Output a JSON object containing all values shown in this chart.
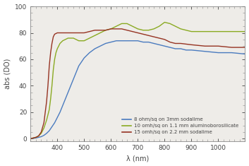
{
  "title": "",
  "xlabel": "λ (nm)",
  "ylabel": "abs (DO)",
  "xlim": [
    300,
    1100
  ],
  "ylim": [
    -2,
    100
  ],
  "yticks": [
    0,
    20,
    40,
    60,
    80,
    100
  ],
  "xticks": [
    400,
    500,
    600,
    700,
    800,
    900,
    1000
  ],
  "background_color": "#ffffff",
  "plot_bg_color": "#eeece8",
  "legend": [
    "8 ohm/sq on 3mm sodalime",
    "10 omh/sq on 1.1 mm aluminoborosilicate",
    "15 omh/sq on 2.2 mm sodalime"
  ],
  "line_colors": [
    "#4a7bbf",
    "#8aaa22",
    "#963322"
  ],
  "blue_x": [
    300,
    310,
    320,
    330,
    340,
    350,
    360,
    370,
    380,
    390,
    400,
    410,
    420,
    430,
    440,
    450,
    460,
    470,
    480,
    490,
    500,
    520,
    540,
    560,
    580,
    600,
    620,
    640,
    660,
    680,
    700,
    720,
    740,
    760,
    780,
    800,
    820,
    840,
    860,
    880,
    900,
    950,
    1000,
    1050,
    1100
  ],
  "blue_y": [
    0,
    0.2,
    0.5,
    1,
    1.5,
    2.5,
    4,
    6,
    9,
    12,
    16,
    20,
    25,
    30,
    35,
    40,
    45,
    50,
    55,
    58,
    61,
    65,
    68,
    70,
    72,
    73,
    74,
    74,
    74,
    74,
    74,
    73,
    73,
    72,
    71,
    70,
    69,
    68,
    68,
    67,
    67,
    66,
    65,
    65,
    64
  ],
  "green_x": [
    300,
    310,
    320,
    330,
    340,
    350,
    360,
    370,
    375,
    380,
    385,
    390,
    395,
    400,
    410,
    420,
    430,
    440,
    450,
    460,
    470,
    480,
    490,
    500,
    510,
    520,
    530,
    540,
    550,
    560,
    580,
    600,
    620,
    640,
    660,
    680,
    700,
    720,
    740,
    760,
    780,
    800,
    820,
    840,
    860,
    900,
    950,
    1000,
    1050,
    1100
  ],
  "green_y": [
    0,
    0.5,
    1,
    2,
    4,
    8,
    14,
    22,
    30,
    40,
    52,
    60,
    65,
    68,
    72,
    74,
    75,
    76,
    76,
    76,
    75,
    74,
    74,
    74,
    75,
    76,
    77,
    78,
    79,
    80,
    82,
    83,
    85,
    87,
    87,
    85,
    83,
    82,
    82,
    83,
    85,
    88,
    87,
    85,
    83,
    81,
    81,
    81,
    81,
    81
  ],
  "red_x": [
    300,
    310,
    320,
    330,
    340,
    350,
    360,
    365,
    370,
    375,
    380,
    385,
    390,
    400,
    410,
    420,
    440,
    460,
    480,
    500,
    520,
    540,
    560,
    580,
    600,
    620,
    640,
    660,
    680,
    700,
    720,
    740,
    760,
    780,
    800,
    820,
    840,
    860,
    900,
    950,
    1000,
    1050,
    1100
  ],
  "red_y": [
    0,
    0.5,
    1,
    2,
    5,
    12,
    28,
    40,
    55,
    65,
    72,
    77,
    79,
    80,
    80,
    80,
    80,
    80,
    80,
    80,
    81,
    82,
    82,
    82,
    83,
    83,
    83,
    82,
    81,
    80,
    79,
    78,
    77,
    76,
    75,
    73,
    72,
    72,
    71,
    70,
    70,
    69,
    69
  ]
}
